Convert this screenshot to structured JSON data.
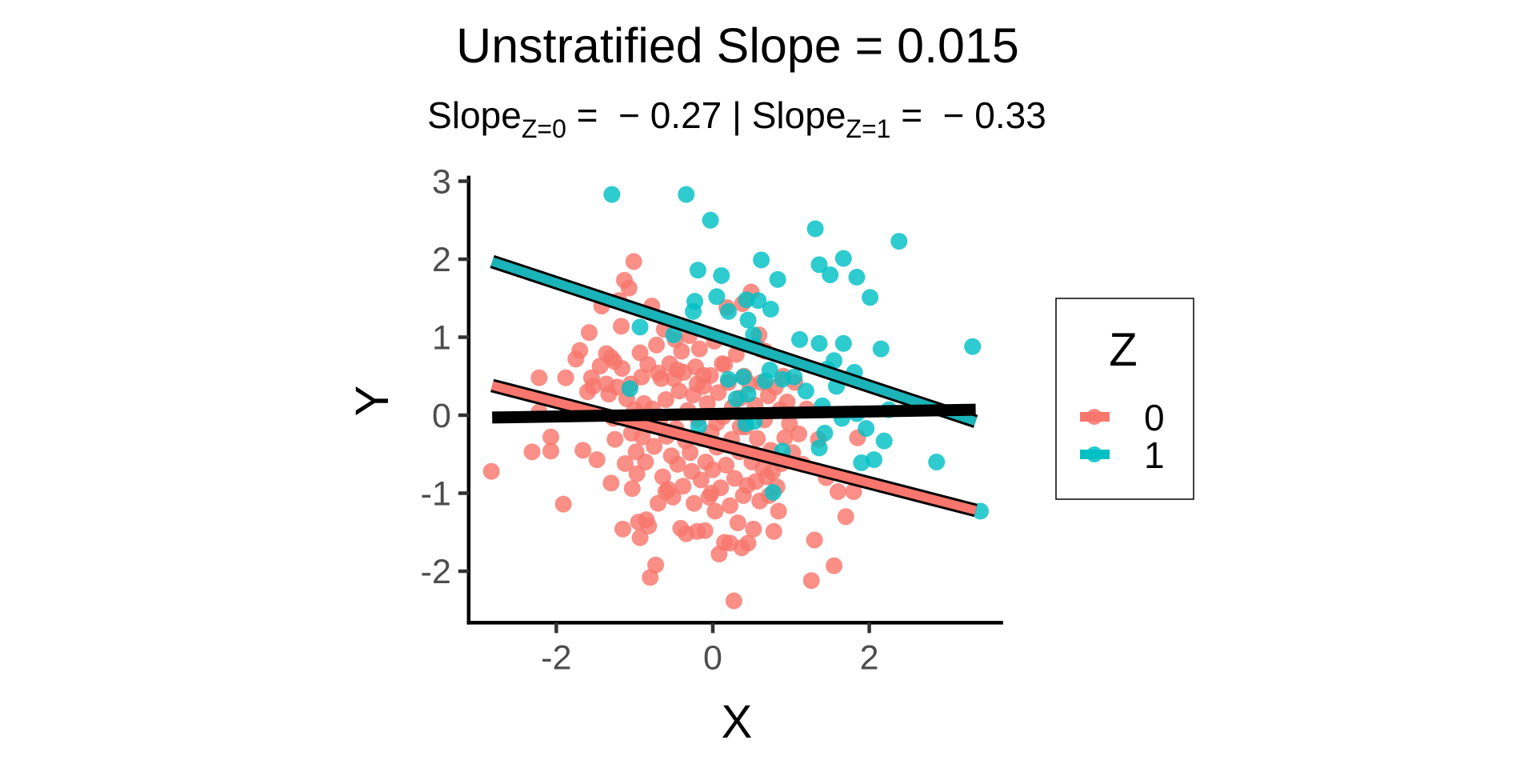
{
  "chart_data": {
    "type": "scatter",
    "title": "Unstratified Slope = 0.015",
    "subtitle": {
      "part1_main": "Slope",
      "part1_sub": "Z=0",
      "part1_rest": " =  − 0.27 | ",
      "part2_main": "Slope",
      "part2_sub": "Z=1",
      "part2_rest": " =  − 0.33"
    },
    "xlabel": "X",
    "ylabel": "Y",
    "xlim": [
      -3.12,
      3.71
    ],
    "ylim": [
      -2.66,
      3.07
    ],
    "x_ticks": [
      -2,
      0,
      2
    ],
    "x_tick_labels": [
      "-2",
      "0",
      "2"
    ],
    "y_ticks": [
      -2,
      -1,
      0,
      1,
      2,
      3
    ],
    "y_tick_labels": [
      "-2",
      "-1",
      "0",
      "1",
      "2",
      "3"
    ],
    "grid": false,
    "legend": {
      "title": "Z",
      "position": "right",
      "entries": [
        {
          "label": "0",
          "color": "#F8766D"
        },
        {
          "label": "1",
          "color": "#00BFC4"
        }
      ]
    },
    "fit_lines": [
      {
        "name": "Z=0 fit",
        "color": "#F8766D",
        "outline": "#000000",
        "x": [
          -2.82,
          3.36
        ],
        "y": [
          0.38,
          -1.22
        ],
        "slope": -0.27
      },
      {
        "name": "Z=1 fit",
        "color": "#1AB3B7",
        "outline": "#000000",
        "x": [
          -2.82,
          3.36
        ],
        "y": [
          1.97,
          -0.08
        ],
        "slope": -0.33
      },
      {
        "name": "Unstratified fit",
        "color": "#000000",
        "x": [
          -2.82,
          3.36
        ],
        "y": [
          -0.03,
          0.07
        ],
        "slope": 0.015
      }
    ],
    "series": [
      {
        "name": "0",
        "color": "#F8766D",
        "points": [
          [
            -2.83,
            -0.72
          ],
          [
            -2.31,
            -0.47
          ],
          [
            -2.22,
            0.04
          ],
          [
            -2.22,
            0.48
          ],
          [
            -2.07,
            -0.28
          ],
          [
            -2.07,
            -0.46
          ],
          [
            -1.88,
            0.48
          ],
          [
            -1.91,
            -1.14
          ],
          [
            -1.75,
            0.72
          ],
          [
            -1.7,
            0.83
          ],
          [
            -1.66,
            -0.45
          ],
          [
            -1.58,
            1.06
          ],
          [
            -1.55,
            0.48
          ],
          [
            -1.53,
            0.37
          ],
          [
            -1.48,
            -0.57
          ],
          [
            -1.44,
            0.63
          ],
          [
            -1.42,
            1.4
          ],
          [
            -1.36,
            0.79
          ],
          [
            -1.33,
            0.27
          ],
          [
            -1.3,
            0.74
          ],
          [
            -1.3,
            -0.87
          ],
          [
            -1.27,
            -0.04
          ],
          [
            -1.25,
            -0.31
          ],
          [
            -1.22,
            0.36
          ],
          [
            -1.2,
            1.47
          ],
          [
            -1.17,
            1.14
          ],
          [
            -1.16,
            0.6
          ],
          [
            -1.15,
            -1.46
          ],
          [
            -1.13,
            1.73
          ],
          [
            -1.1,
            0.21
          ],
          [
            -1.07,
            1.63
          ],
          [
            -1.05,
            0.4
          ],
          [
            -1.04,
            -0.23
          ],
          [
            -1.03,
            -0.94
          ],
          [
            -1.01,
            1.97
          ],
          [
            -1.0,
            0.07
          ],
          [
            -0.98,
            -0.47
          ],
          [
            -0.97,
            -0.75
          ],
          [
            -0.95,
            -1.37
          ],
          [
            -0.93,
            0.8
          ],
          [
            -0.93,
            -1.57
          ],
          [
            -0.91,
            0.49
          ],
          [
            -0.9,
            -0.28
          ],
          [
            -0.88,
            0.15
          ],
          [
            -0.86,
            -0.6
          ],
          [
            -0.85,
            -1.34
          ],
          [
            -0.83,
            0.65
          ],
          [
            -0.82,
            -1.42
          ],
          [
            -0.8,
            -2.08
          ],
          [
            -0.78,
            1.4
          ],
          [
            -0.77,
            0.08
          ],
          [
            -0.75,
            -0.4
          ],
          [
            -0.73,
            -1.92
          ],
          [
            -0.72,
            0.9
          ],
          [
            -0.7,
            -1.13
          ],
          [
            -0.68,
            -0.1
          ],
          [
            -0.66,
            0.47
          ],
          [
            -0.64,
            -0.79
          ],
          [
            -0.62,
            1.1
          ],
          [
            -0.6,
            0.2
          ],
          [
            -0.59,
            -0.27
          ],
          [
            -0.57,
            -0.95
          ],
          [
            -0.55,
            0.66
          ],
          [
            -0.53,
            -0.52
          ],
          [
            -0.51,
            -1.05
          ],
          [
            -0.5,
            0.47
          ],
          [
            -0.48,
            0.97
          ],
          [
            -0.47,
            -0.17
          ],
          [
            -0.45,
            -0.63
          ],
          [
            -0.43,
            0.31
          ],
          [
            -0.41,
            -1.45
          ],
          [
            -0.4,
            0.82
          ],
          [
            -0.38,
            -0.91
          ],
          [
            -0.37,
            0.55
          ],
          [
            -0.35,
            -0.33
          ],
          [
            -0.34,
            -1.52
          ],
          [
            -0.32,
            0.06
          ],
          [
            -0.3,
            1.02
          ],
          [
            -0.29,
            -0.48
          ],
          [
            -0.27,
            -0.72
          ],
          [
            -0.25,
            0.26
          ],
          [
            -0.24,
            -1.13
          ],
          [
            -0.22,
            0.62
          ],
          [
            -0.2,
            -1.49
          ],
          [
            -0.19,
            -0.05
          ],
          [
            -0.17,
            0.85
          ],
          [
            -0.15,
            -0.83
          ],
          [
            -0.14,
            -0.3
          ],
          [
            -0.12,
            0.37
          ],
          [
            -0.1,
            -1.48
          ],
          [
            -0.09,
            -0.6
          ],
          [
            -0.07,
            0.15
          ],
          [
            -0.05,
            -1.05
          ],
          [
            -0.03,
            0.51
          ],
          [
            -0.02,
            -0.22
          ],
          [
            0.0,
            -0.7
          ],
          [
            0.02,
            0.95
          ],
          [
            0.03,
            -1.23
          ],
          [
            0.05,
            -0.41
          ],
          [
            0.07,
            0.29
          ],
          [
            0.08,
            -1.78
          ],
          [
            0.1,
            -0.93
          ],
          [
            0.12,
            0.66
          ],
          [
            0.13,
            -0.02
          ],
          [
            0.15,
            -1.63
          ],
          [
            0.17,
            -0.64
          ],
          [
            0.18,
            1.38
          ],
          [
            0.2,
            0.42
          ],
          [
            0.22,
            -1.16
          ],
          [
            0.24,
            -0.31
          ],
          [
            0.25,
            0.1
          ],
          [
            0.27,
            -2.38
          ],
          [
            0.28,
            -0.81
          ],
          [
            0.3,
            0.78
          ],
          [
            0.32,
            -1.38
          ],
          [
            0.34,
            -0.47
          ],
          [
            0.35,
            0.22
          ],
          [
            0.37,
            -1.7
          ],
          [
            0.39,
            -1.03
          ],
          [
            0.4,
            0.5
          ],
          [
            0.42,
            -0.15
          ],
          [
            0.44,
            -0.9
          ],
          [
            0.45,
            -1.64
          ],
          [
            0.47,
            0.4
          ],
          [
            0.49,
            1.58
          ],
          [
            0.5,
            -0.6
          ],
          [
            0.52,
            -1.46
          ],
          [
            0.54,
            0.13
          ],
          [
            0.55,
            -0.85
          ],
          [
            0.57,
            -0.3
          ],
          [
            0.59,
            1.03
          ],
          [
            0.6,
            -1.1
          ],
          [
            0.62,
            0.42
          ],
          [
            0.64,
            -0.68
          ],
          [
            0.66,
            -0.06
          ],
          [
            0.67,
            0.82
          ],
          [
            0.69,
            -0.79
          ],
          [
            0.71,
            0.25
          ],
          [
            0.72,
            -1.03
          ],
          [
            0.74,
            -0.45
          ],
          [
            0.76,
            -0.73
          ],
          [
            0.78,
            -1.49
          ],
          [
            0.8,
            0.36
          ],
          [
            0.82,
            -0.92
          ],
          [
            0.84,
            -1.23
          ],
          [
            0.86,
            0.07
          ],
          [
            0.88,
            -0.62
          ],
          [
            0.9,
            0.5
          ],
          [
            0.92,
            -0.29
          ],
          [
            0.95,
            0.17
          ],
          [
            0.98,
            -0.11
          ],
          [
            1.02,
            -0.48
          ],
          [
            1.05,
            0.42
          ],
          [
            1.1,
            -0.24
          ],
          [
            1.15,
            -0.63
          ],
          [
            1.2,
            0.08
          ],
          [
            1.26,
            -2.12
          ],
          [
            1.3,
            -1.6
          ],
          [
            1.35,
            -0.31
          ],
          [
            1.45,
            -0.8
          ],
          [
            1.55,
            -1.93
          ],
          [
            1.6,
            -0.98
          ],
          [
            1.7,
            -1.3
          ],
          [
            1.8,
            -0.98
          ],
          [
            1.85,
            -0.29
          ],
          [
            -0.02,
            -1.0
          ],
          [
            0.22,
            -1.64
          ],
          [
            -0.6,
            -0.98
          ],
          [
            -1.36,
            0.4
          ],
          [
            -1.6,
            0.3
          ],
          [
            -1.26,
            0.69
          ],
          [
            -0.7,
            0.54
          ],
          [
            -0.45,
            0.58
          ],
          [
            -0.12,
            0.51
          ],
          [
            0.38,
            1.43
          ],
          [
            0.15,
            0.65
          ],
          [
            -0.85,
            -0.04
          ],
          [
            -1.12,
            -0.62
          ],
          [
            0.6,
            0.85
          ],
          [
            0.35,
            -0.15
          ],
          [
            -0.2,
            0.4
          ],
          [
            0.05,
            -0.1
          ]
        ]
      },
      {
        "name": "1",
        "color": "#00BFC4",
        "points": [
          [
            -1.29,
            2.83
          ],
          [
            -0.34,
            2.83
          ],
          [
            -0.03,
            2.5
          ],
          [
            1.31,
            2.39
          ],
          [
            2.38,
            2.23
          ],
          [
            0.62,
            1.99
          ],
          [
            1.36,
            1.93
          ],
          [
            1.67,
            2.01
          ],
          [
            1.5,
            1.8
          ],
          [
            1.84,
            1.77
          ],
          [
            -0.19,
            1.86
          ],
          [
            0.11,
            1.79
          ],
          [
            0.83,
            1.74
          ],
          [
            2.01,
            1.51
          ],
          [
            0.05,
            1.52
          ],
          [
            -0.23,
            1.46
          ],
          [
            0.43,
            1.48
          ],
          [
            0.58,
            1.47
          ],
          [
            0.2,
            1.33
          ],
          [
            -0.25,
            1.33
          ],
          [
            0.74,
            1.36
          ],
          [
            -0.93,
            1.13
          ],
          [
            -0.5,
            1.03
          ],
          [
            0.52,
            1.03
          ],
          [
            0.45,
            1.22
          ],
          [
            1.11,
            0.97
          ],
          [
            1.36,
            0.92
          ],
          [
            1.67,
            0.92
          ],
          [
            2.15,
            0.85
          ],
          [
            3.32,
            0.88
          ],
          [
            0.54,
            0.88
          ],
          [
            1.55,
            0.7
          ],
          [
            1.46,
            0.59
          ],
          [
            1.81,
            0.55
          ],
          [
            0.73,
            0.58
          ],
          [
            0.89,
            0.46
          ],
          [
            1.04,
            0.49
          ],
          [
            0.67,
            0.44
          ],
          [
            0.2,
            0.46
          ],
          [
            0.39,
            0.49
          ],
          [
            0.45,
            0.27
          ],
          [
            0.3,
            0.21
          ],
          [
            1.19,
            0.31
          ],
          [
            1.58,
            0.37
          ],
          [
            1.4,
            0.12
          ],
          [
            1.84,
            0.02
          ],
          [
            2.25,
            0.07
          ],
          [
            1.65,
            -0.04
          ],
          [
            -0.18,
            -0.14
          ],
          [
            0.42,
            -0.11
          ],
          [
            0.53,
            -0.08
          ],
          [
            1.43,
            -0.23
          ],
          [
            1.96,
            -0.17
          ],
          [
            2.19,
            -0.33
          ],
          [
            0.89,
            -0.46
          ],
          [
            1.36,
            -0.42
          ],
          [
            1.9,
            -0.61
          ],
          [
            2.06,
            -0.57
          ],
          [
            2.86,
            -0.6
          ],
          [
            3.42,
            -1.23
          ],
          [
            -1.06,
            0.34
          ],
          [
            0.77,
            -0.99
          ]
        ]
      }
    ]
  }
}
